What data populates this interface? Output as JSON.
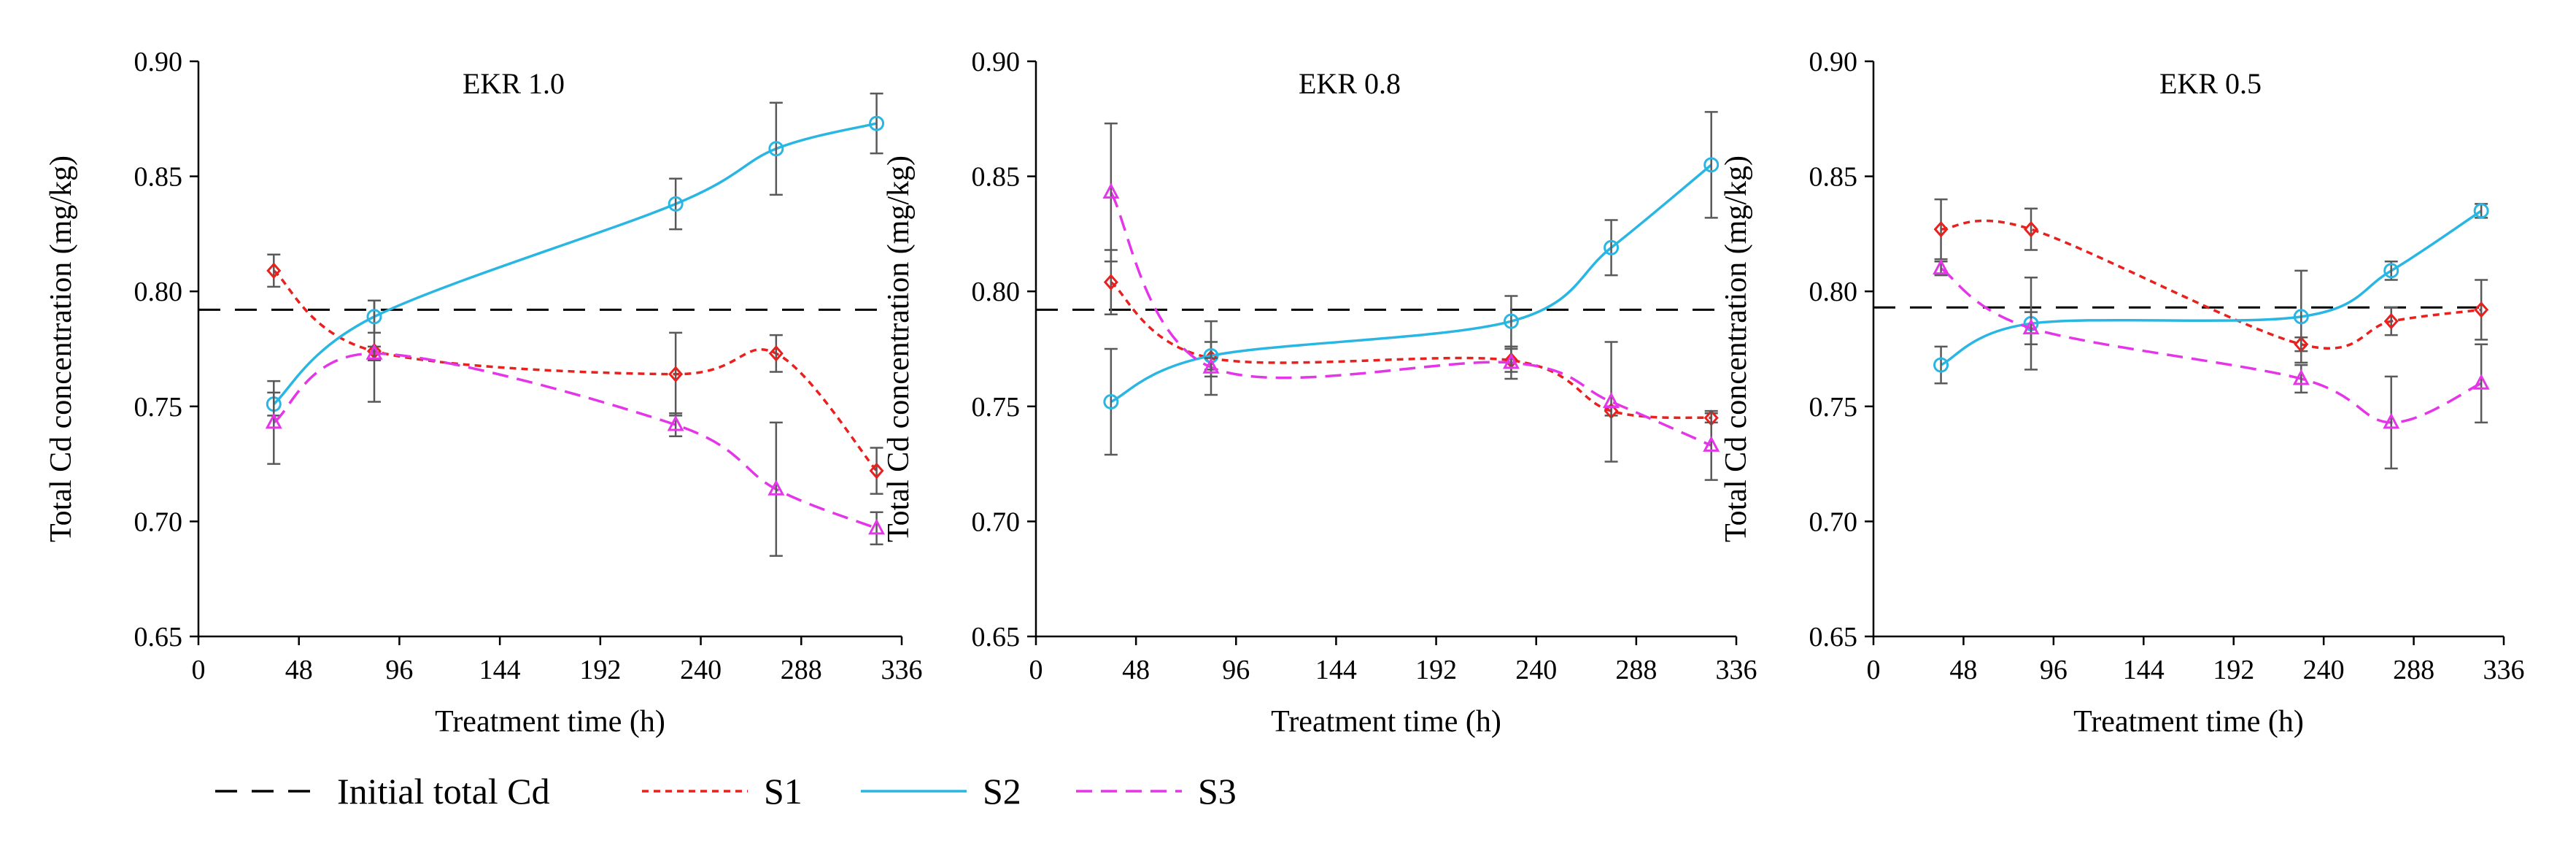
{
  "colors": {
    "initial": "#000000",
    "S1": "#e8201e",
    "S2": "#29b6e3",
    "S3": "#e535e8",
    "error_bar": "#595959",
    "axis": "#000000"
  },
  "legend": {
    "position": "bottom",
    "items": [
      {
        "key": "initial",
        "label": "Initial total Cd",
        "dash": "long"
      },
      {
        "key": "S1",
        "label": "S1",
        "dash": "short",
        "marker": "diamond"
      },
      {
        "key": "S2",
        "label": "S2",
        "dash": "solid",
        "marker": "circle"
      },
      {
        "key": "S3",
        "label": "S3",
        "dash": "medium",
        "marker": "triangle"
      }
    ]
  },
  "chart_data": [
    {
      "type": "line",
      "title": "EKR 1.0",
      "xlabel": "Treatment time (h)",
      "ylabel": "Total Cd concentration (mg/kg)",
      "xlim": [
        0,
        336
      ],
      "ylim": [
        0.65,
        0.9
      ],
      "xticks": [
        "0",
        "48",
        "96",
        "144",
        "192",
        "240",
        "288",
        "336"
      ],
      "yticks": [
        "0.65",
        "0.70",
        "0.75",
        "0.80",
        "0.85",
        "0.90"
      ],
      "initial_total_cd": 0.792,
      "series": [
        {
          "name": "S1",
          "x": [
            36,
            84,
            228,
            276,
            324
          ],
          "values": [
            0.809,
            0.774,
            0.764,
            0.773,
            0.722
          ],
          "errors": [
            0.007,
            0.022,
            0.018,
            0.008,
            0.01
          ]
        },
        {
          "name": "S2",
          "x": [
            36,
            84,
            228,
            276,
            324
          ],
          "values": [
            0.751,
            0.789,
            0.838,
            0.862,
            0.873
          ],
          "errors": [
            0.005,
            0.007,
            0.011,
            0.02,
            0.013
          ]
        },
        {
          "name": "S3",
          "x": [
            36,
            84,
            228,
            276,
            324
          ],
          "values": [
            0.743,
            0.773,
            0.742,
            0.714,
            0.697
          ],
          "errors": [
            0.018,
            0.003,
            0.005,
            0.029,
            0.007
          ]
        }
      ]
    },
    {
      "type": "line",
      "title": "EKR 0.8",
      "xlabel": "Treatment time (h)",
      "ylabel": "Total Cd concentration (mg/kg)",
      "xlim": [
        0,
        336
      ],
      "ylim": [
        0.65,
        0.9
      ],
      "xticks": [
        "0",
        "48",
        "96",
        "144",
        "192",
        "240",
        "288",
        "336"
      ],
      "yticks": [
        "0.65",
        "0.70",
        "0.75",
        "0.80",
        "0.85",
        "0.90"
      ],
      "initial_total_cd": 0.792,
      "series": [
        {
          "name": "S1",
          "x": [
            36,
            84,
            228,
            276,
            324
          ],
          "values": [
            0.804,
            0.771,
            0.77,
            0.748,
            0.745
          ],
          "errors": [
            0.014,
            0.016,
            0.005,
            0.002,
            0.002
          ]
        },
        {
          "name": "S2",
          "x": [
            36,
            84,
            228,
            276,
            324
          ],
          "values": [
            0.752,
            0.772,
            0.787,
            0.819,
            0.855
          ],
          "errors": [
            0.023,
            0.006,
            0.011,
            0.012,
            0.023
          ]
        },
        {
          "name": "S3",
          "x": [
            36,
            84,
            228,
            276,
            324
          ],
          "values": [
            0.843,
            0.767,
            0.769,
            0.752,
            0.733
          ],
          "errors": [
            0.03,
            0.004,
            0.007,
            0.026,
            0.015
          ]
        }
      ]
    },
    {
      "type": "line",
      "title": "EKR 0.5",
      "xlabel": "Treatment time (h)",
      "ylabel": "Total Cd concentration (mg/kg)",
      "xlim": [
        0,
        336
      ],
      "ylim": [
        0.65,
        0.9
      ],
      "xticks": [
        "0",
        "48",
        "96",
        "144",
        "192",
        "240",
        "288",
        "336"
      ],
      "yticks": [
        "0.65",
        "0.70",
        "0.75",
        "0.80",
        "0.85",
        "0.90"
      ],
      "initial_total_cd": 0.793,
      "series": [
        {
          "name": "S1",
          "x": [
            36,
            84,
            228,
            276,
            324
          ],
          "values": [
            0.827,
            0.827,
            0.777,
            0.787,
            0.792
          ],
          "errors": [
            0.013,
            0.009,
            0.003,
            0.006,
            0.013
          ]
        },
        {
          "name": "S2",
          "x": [
            36,
            84,
            228,
            276,
            324
          ],
          "values": [
            0.768,
            0.786,
            0.789,
            0.809,
            0.835
          ],
          "errors": [
            0.008,
            0.02,
            0.02,
            0.004,
            0.003
          ]
        },
        {
          "name": "S3",
          "x": [
            36,
            84,
            228,
            276,
            324
          ],
          "values": [
            0.81,
            0.784,
            0.762,
            0.743,
            0.76
          ],
          "errors": [
            0.003,
            0.007,
            0.006,
            0.02,
            0.017
          ]
        }
      ]
    }
  ]
}
